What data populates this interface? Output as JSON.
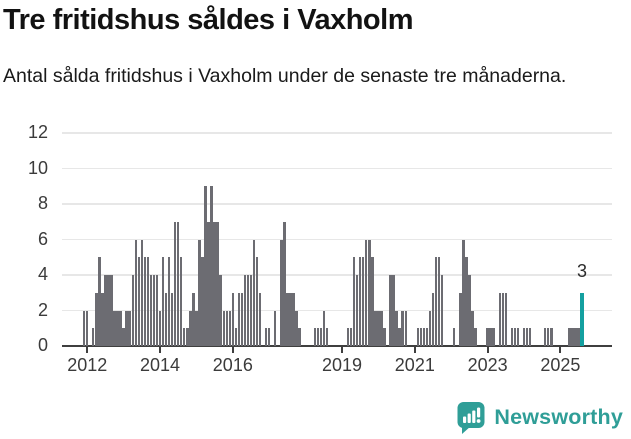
{
  "header": {
    "title": "Tre fritidshus såldes i Vaxholm",
    "subtitle": "Antal sålda fritidshus i Vaxholm under de senaste tre månaderna."
  },
  "chart_data": {
    "type": "bar",
    "title": "Tre fritidshus såldes i Vaxholm",
    "subtitle": "Antal sålda fritidshus i Vaxholm under de senaste tre månaderna.",
    "xlabel": "",
    "ylabel": "",
    "ylim": [
      0,
      12
    ],
    "yticks": [
      0,
      2,
      4,
      6,
      8,
      10,
      12
    ],
    "xticks": [
      2012,
      2014,
      2016,
      2019,
      2021,
      2023,
      2025
    ],
    "grid": true,
    "legend": "none",
    "frequency": "monthly",
    "start_month": "2011-12",
    "bar_color": "#6c6c72",
    "values": [
      2,
      2,
      0,
      1,
      3,
      5,
      3,
      4,
      4,
      4,
      2,
      2,
      2,
      1,
      2,
      2,
      4,
      6,
      5,
      6,
      5,
      5,
      4,
      4,
      4,
      2,
      5,
      3,
      5,
      3,
      7,
      7,
      5,
      1,
      1,
      2,
      3,
      2,
      6,
      5,
      9,
      7,
      9,
      7,
      7,
      4,
      2,
      2,
      2,
      3,
      1,
      3,
      3,
      4,
      4,
      4,
      6,
      5,
      3,
      0,
      1,
      1,
      0,
      2,
      0,
      6,
      7,
      3,
      3,
      3,
      2,
      1,
      0,
      0,
      0,
      0,
      1,
      1,
      1,
      2,
      1,
      0,
      0,
      0,
      0,
      0,
      0,
      1,
      1,
      5,
      4,
      5,
      5,
      6,
      6,
      5,
      2,
      2,
      2,
      1,
      0,
      4,
      4,
      2,
      1,
      2,
      2,
      0,
      0,
      0,
      1,
      1,
      1,
      1,
      2,
      3,
      5,
      5,
      4,
      0,
      0,
      0,
      1,
      0,
      3,
      6,
      5,
      4,
      2,
      1,
      0,
      0,
      0,
      1,
      1,
      1,
      0,
      3,
      3,
      3,
      0,
      1,
      1,
      1,
      0,
      1,
      1,
      1,
      0,
      0,
      0,
      0,
      1,
      1,
      1,
      0,
      0,
      0,
      0,
      0,
      1,
      1,
      1,
      1,
      3
    ],
    "highlight": {
      "index": 164,
      "month": "2025-08",
      "value": 3,
      "label": "3",
      "color": "#14a0a0"
    }
  },
  "annotation": {
    "label": "3"
  },
  "branding": {
    "logo_text": "Newsworthy",
    "color": "#2f9e97"
  }
}
